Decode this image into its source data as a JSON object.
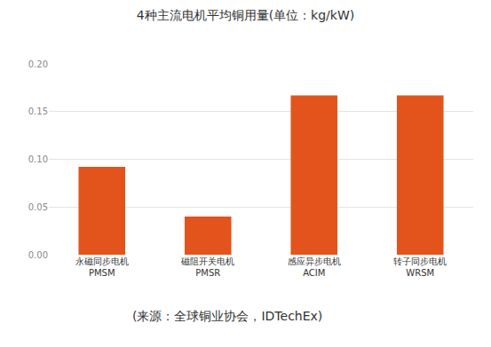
{
  "chart_data": {
    "type": "bar",
    "title": "4种主流电机平均铜用量(单位：kg/kW)",
    "categories": [
      "永磁同步电机\nPMSM",
      "磁阻开关电机\nPMSR",
      "感应异步电机\nACIM",
      "转子同步电机\nWRSM"
    ],
    "values": [
      0.092,
      0.04,
      0.167,
      0.167
    ],
    "color": "#e2541b",
    "ylim": [
      0,
      0.2
    ],
    "yticks": [
      {
        "value": 0,
        "label": "0.00"
      },
      {
        "value": 0.05,
        "label": "0.05"
      },
      {
        "value": 0.1,
        "label": "0.10"
      },
      {
        "value": 0.15,
        "label": "0.15"
      },
      {
        "value": 0.2,
        "label": "0.20"
      }
    ],
    "grid": true,
    "annotations": [
      "(来源：全球铜业协会，IDTechEx)"
    ]
  }
}
